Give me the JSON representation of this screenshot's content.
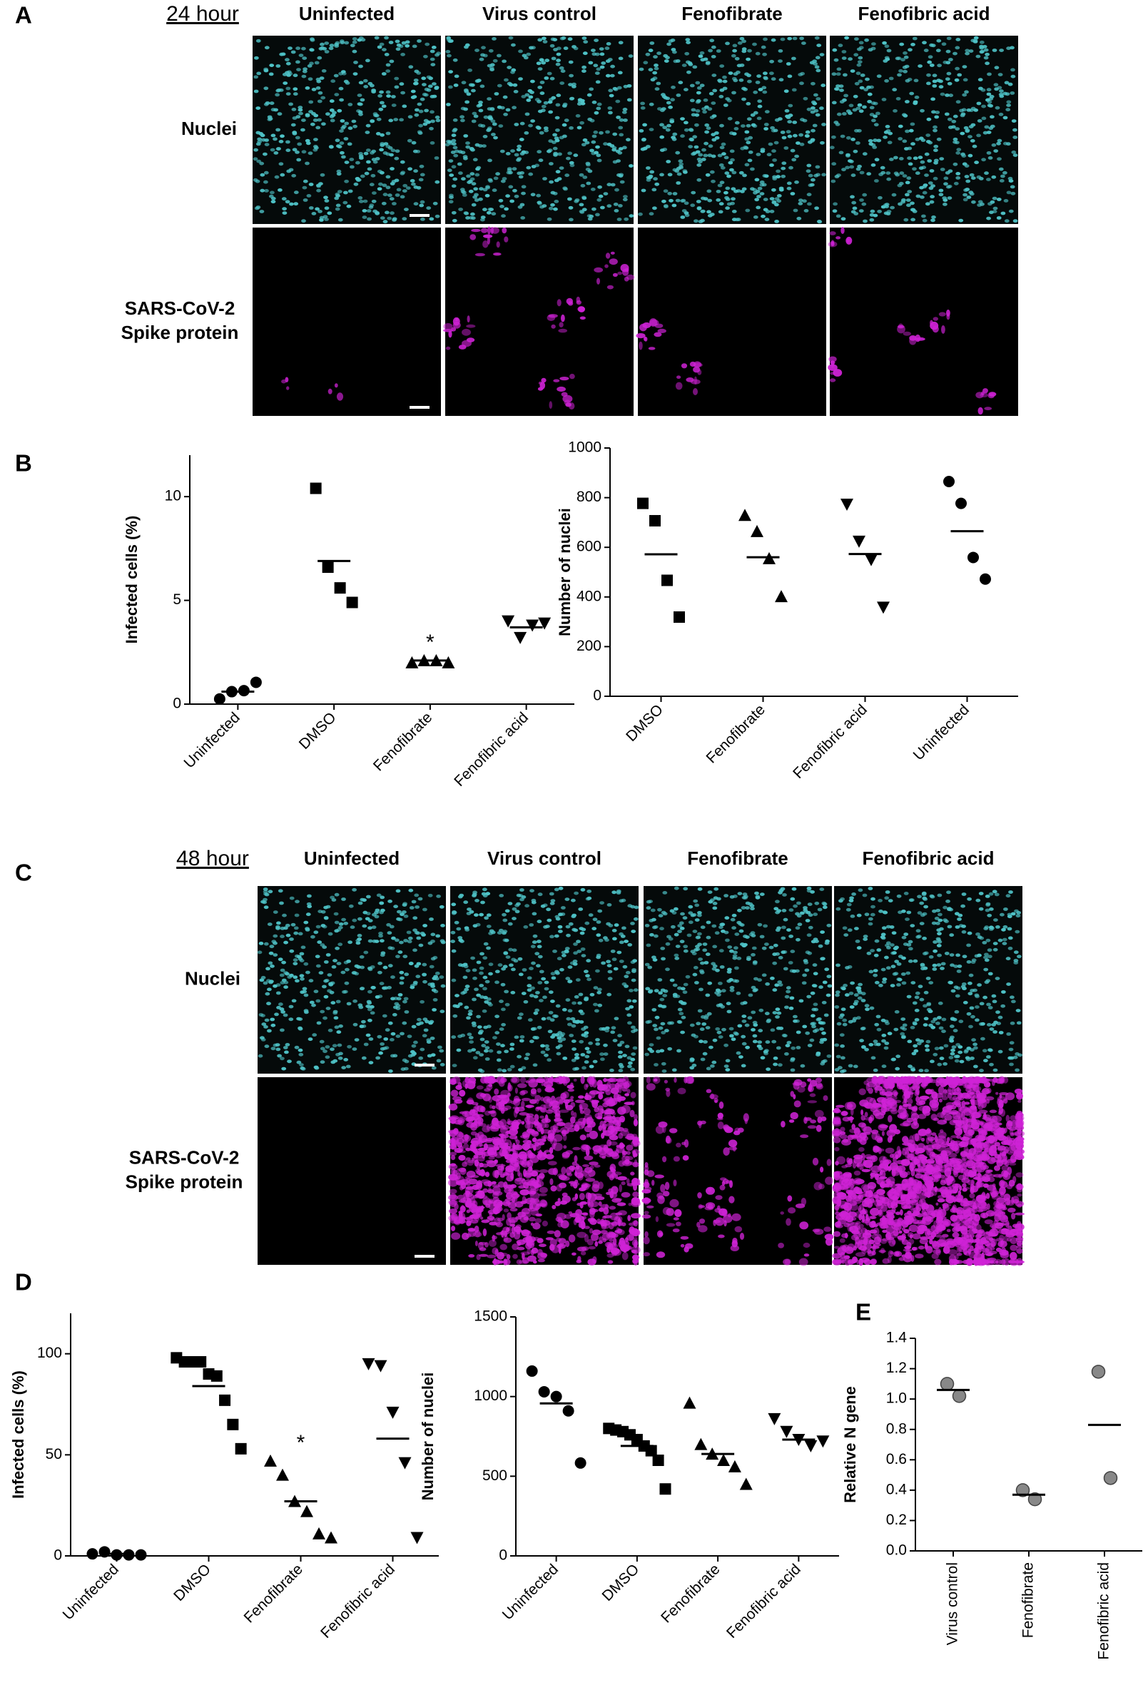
{
  "figure": {
    "panel_letters": [
      "A",
      "B",
      "C",
      "D",
      "E"
    ],
    "panel_a": {
      "time": "24 hour",
      "columns": [
        "Uninfected",
        "Virus control",
        "Fenofibrate",
        "Fenofibric acid"
      ],
      "rows": [
        [
          "Nuclei"
        ],
        [
          "SARS-CoV-2",
          "Spike protein"
        ]
      ]
    },
    "panel_c": {
      "time": "48 hour",
      "columns": [
        "Uninfected",
        "Virus control",
        "Fenofibrate",
        "Fenofibric acid"
      ],
      "rows": [
        [
          "Nuclei"
        ],
        [
          "SARS-CoV-2",
          "Spike protein"
        ]
      ]
    }
  },
  "chart_data": [
    {
      "type": "dot",
      "ylabel": "Infected cells (%)",
      "categories": [
        "Uninfected",
        "DMSO",
        "Fenofibrate",
        "Fenofibric acid"
      ],
      "markers": [
        "circle",
        "square",
        "triangle-up",
        "triangle-down"
      ],
      "color": "#000000",
      "values": [
        [
          0.25,
          0.6,
          0.65,
          1.05
        ],
        [
          10.4,
          6.6,
          5.6,
          4.9
        ],
        [
          2.0,
          2.1,
          2.1,
          2.0
        ],
        [
          4.0,
          3.2,
          3.8,
          3.9
        ]
      ],
      "means": [
        0.6,
        6.9,
        2.1,
        3.7
      ],
      "annotations": [
        {
          "category": "Fenofibrate",
          "text": "*"
        }
      ],
      "ylim": [
        0,
        12
      ],
      "yticks": [
        0,
        5,
        10
      ]
    },
    {
      "type": "dot",
      "ylabel": "Number of nuclei",
      "categories": [
        "DMSO",
        "Fenofibrate",
        "Fenofibric acid",
        "Uninfected"
      ],
      "markers": [
        "square",
        "triangle-up",
        "triangle-down",
        "circle"
      ],
      "color": "#000000",
      "values": [
        [
          777,
          707,
          467,
          319
        ],
        [
          729,
          664,
          555,
          402
        ],
        [
          773,
          624,
          550,
          358
        ],
        [
          865,
          777,
          559,
          472
        ]
      ],
      "means": [
        572,
        560,
        573,
        665
      ],
      "ylim": [
        0,
        1000
      ],
      "yticks": [
        0,
        200,
        400,
        600,
        800,
        1000
      ]
    },
    {
      "type": "dot",
      "ylabel": "Infected cells (%)",
      "categories": [
        "Uninfected",
        "DMSO",
        "Fenofibrate",
        "Fenofibric acid"
      ],
      "markers": [
        "circle",
        "square",
        "triangle-up",
        "triangle-down"
      ],
      "color": "#000000",
      "values": [
        [
          1,
          2,
          0.5,
          0.5,
          0.5
        ],
        [
          98,
          96,
          96,
          96,
          90,
          89,
          77,
          65,
          53
        ],
        [
          47,
          40,
          27,
          22,
          11,
          9
        ],
        [
          95,
          94,
          71,
          46,
          9
        ]
      ],
      "means": [
        1,
        84,
        27,
        58
      ],
      "annotations": [
        {
          "category": "Fenofibrate",
          "text": "*"
        }
      ],
      "ylim": [
        0,
        120
      ],
      "yticks": [
        0,
        50,
        100
      ]
    },
    {
      "type": "dot",
      "ylabel": "Number of nuclei",
      "categories": [
        "Uninfected",
        "DMSO",
        "Fenofibrate",
        "Fenofibric acid"
      ],
      "markers": [
        "circle",
        "square",
        "triangle-up",
        "triangle-down"
      ],
      "color": "#000000",
      "values": [
        [
          1160,
          1030,
          1000,
          910,
          583
        ],
        [
          800,
          790,
          780,
          760,
          730,
          690,
          660,
          600,
          420
        ],
        [
          960,
          700,
          640,
          600,
          560,
          450
        ],
        [
          860,
          780,
          730,
          690,
          720
        ]
      ],
      "means": [
        957,
        690,
        640,
        730
      ],
      "ylim": [
        0,
        1500
      ],
      "yticks": [
        0,
        500,
        1000,
        1500
      ]
    },
    {
      "type": "dot",
      "ylabel": "Relative N gene",
      "categories": [
        "Virus control",
        "Fenofibrate",
        "Fenofibric acid"
      ],
      "markers": [
        "circle",
        "circle",
        "circle"
      ],
      "color": "#888888",
      "values": [
        [
          1.1,
          1.02
        ],
        [
          0.4,
          0.34
        ],
        [
          1.18,
          0.48
        ]
      ],
      "means": [
        1.06,
        0.37,
        0.83
      ],
      "ylim": [
        0,
        1.4
      ],
      "yticks": [
        {
          "value": 0,
          "label": "0.0"
        },
        0.2,
        0.4,
        0.6,
        0.8,
        {
          "value": 1,
          "label": "1.0"
        },
        1.2,
        1.4
      ]
    }
  ]
}
